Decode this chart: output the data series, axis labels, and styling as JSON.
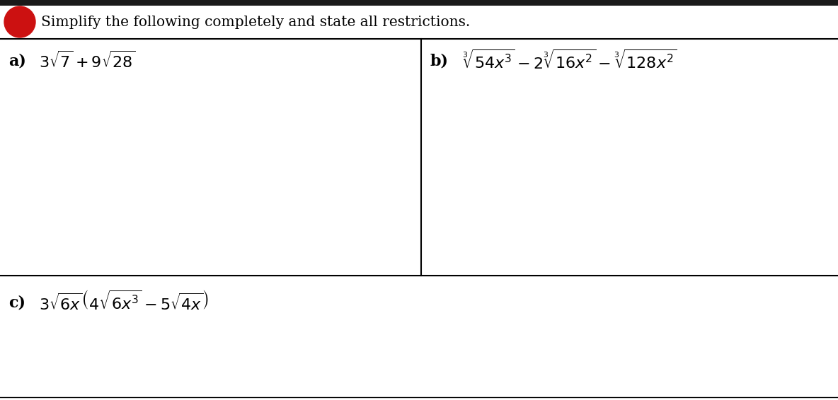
{
  "title": "Simplify the following completely and state all restrictions.",
  "title_fontsize": 14.5,
  "label_a": "a)",
  "label_b": "b)",
  "label_c": "c)",
  "expr_a": "$3\\sqrt{7}+9\\sqrt{28}$",
  "expr_b": "$\\sqrt[3]{54x^3}-2\\sqrt[3]{16x^2}-\\sqrt[3]{128x^2}$",
  "expr_c": "$3\\sqrt{6x}\\left(4\\sqrt{6x^3}-5\\sqrt{4x}\\right)$",
  "bg_color": "#ffffff",
  "text_color": "#000000",
  "circle_color": "#cc1111",
  "border_color": "#000000",
  "top_bar_color": "#1a1a1a",
  "font_family": "DejaVu Serif",
  "expr_fontsize": 16,
  "label_fontsize": 16,
  "fig_width": 11.84,
  "fig_height": 5.66,
  "dpi": 100
}
